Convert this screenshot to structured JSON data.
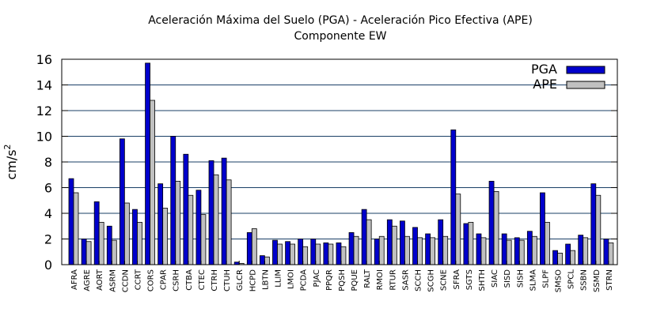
{
  "chart_data": {
    "type": "bar",
    "title": "Aceleración Máxima del Suelo (PGA) -  Aceleración Pico Efectiva (APE)",
    "subtitle": "Componente EW",
    "ylabel": "cm/s",
    "ylabel_sup": "2",
    "xlabel": "",
    "ylim": [
      0,
      16
    ],
    "yticks": [
      0,
      2,
      4,
      6,
      8,
      10,
      12,
      14,
      16
    ],
    "grid": true,
    "legend_position": "top-right",
    "categories": [
      "AFRA",
      "AGRE",
      "AORT",
      "ASRM",
      "CCDN",
      "CCRT",
      "CORS",
      "CPAR",
      "CSRH",
      "CTBA",
      "CTEC",
      "CTRH",
      "CTUH",
      "GLCR",
      "HCPD",
      "LBTN",
      "LLIM",
      "LMOI",
      "PCDA",
      "PJAC",
      "PPQR",
      "PQSH",
      "PQUE",
      "RALT",
      "RMOI",
      "RTUR",
      "SASR",
      "SCCH",
      "SCGH",
      "SCNE",
      "SFRA",
      "SGTS",
      "SHTH",
      "SIAC",
      "SISD",
      "SISH",
      "SLMA",
      "SLPF",
      "SMSO",
      "SPCL",
      "SSBN",
      "SSMD",
      "STRN"
    ],
    "series": [
      {
        "name": "PGA",
        "color": "#0000cc",
        "values": [
          6.7,
          2.0,
          4.9,
          3.0,
          9.8,
          4.3,
          15.7,
          6.3,
          10.0,
          8.6,
          5.8,
          8.1,
          8.3,
          0.2,
          2.5,
          0.7,
          1.9,
          1.8,
          2.0,
          2.0,
          1.7,
          1.7,
          2.5,
          4.3,
          2.0,
          3.5,
          3.4,
          2.9,
          2.4,
          3.5,
          10.5,
          3.2,
          2.4,
          6.5,
          2.4,
          2.1,
          2.6,
          5.6,
          1.1,
          1.6,
          2.3,
          6.3,
          2.0
        ]
      },
      {
        "name": "APE",
        "color": "#c0c0c0",
        "values": [
          5.6,
          1.8,
          3.3,
          1.9,
          4.8,
          3.3,
          12.8,
          4.4,
          6.5,
          5.4,
          3.9,
          7.0,
          6.6,
          0.1,
          2.8,
          0.6,
          1.6,
          1.6,
          1.4,
          1.6,
          1.6,
          1.4,
          2.2,
          3.5,
          2.2,
          3.0,
          2.2,
          2.1,
          2.1,
          2.2,
          5.5,
          3.3,
          2.1,
          5.7,
          1.9,
          1.9,
          2.2,
          3.3,
          0.9,
          1.1,
          2.1,
          5.4,
          1.7
        ]
      }
    ]
  }
}
